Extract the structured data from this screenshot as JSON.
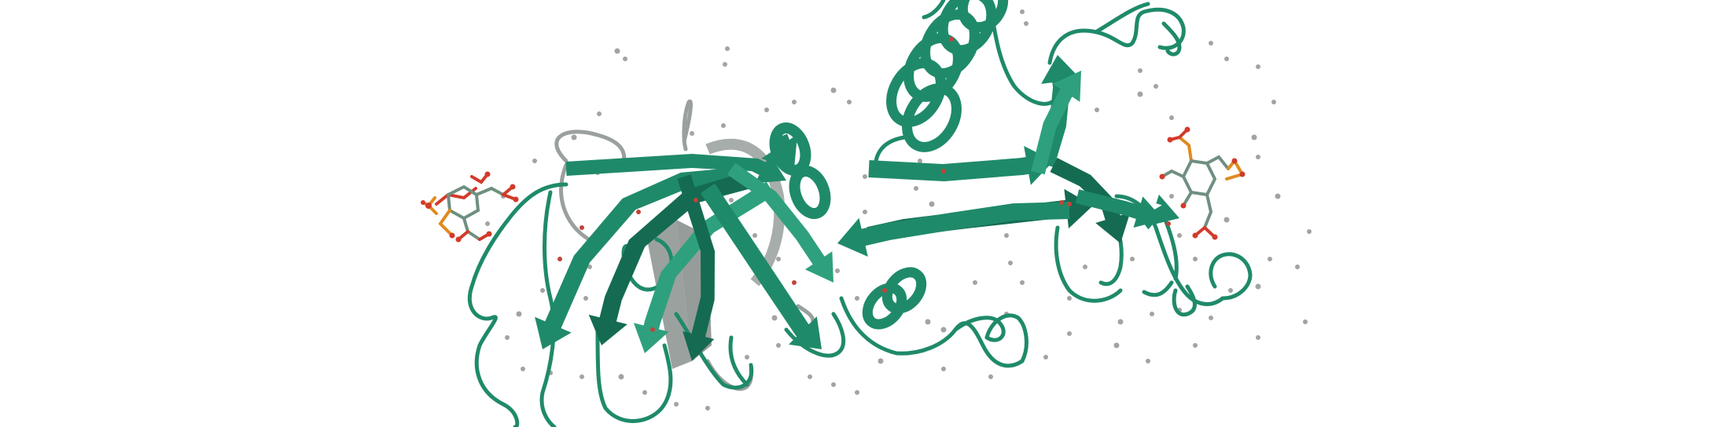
{
  "image": {
    "kind": "protein-cartoon-render",
    "background_color": "#ffffff"
  },
  "colors": {
    "ribbon": "#1f8a6a",
    "ribbon_dark": "#146b52",
    "ribbon_light": "#2ea07d",
    "ghost": "#9aa09d",
    "ghost_dark": "#7c8380",
    "ligand_oxygen": "#d23a2a",
    "ligand_phosphorus": "#e08a1e",
    "ligand_carbon": "#6f8f80",
    "water": "#a3a3a3",
    "water_red": "#c0443a"
  },
  "elements": {
    "protein_chain": "protein-ribbon",
    "helix": "alpha-helix",
    "sheet": "beta-sheet",
    "ligand_left": "phosphorylated-sugar-ligand",
    "ligand_right": "phosphorylated-sugar-ligand",
    "solvent": "water-molecules"
  }
}
